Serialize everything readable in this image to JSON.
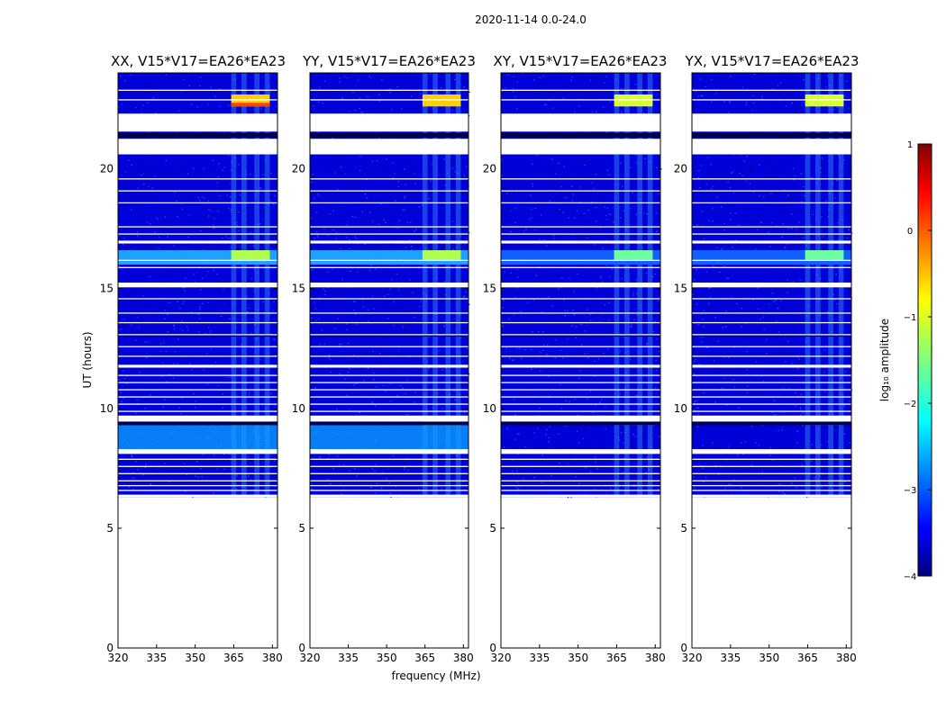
{
  "chart_data": {
    "type": "heatmap",
    "title": "2020-11-14 0.0-24.0",
    "xlabel": "frequency (MHz)",
    "ylabel": "UT (hours)",
    "xlim": [
      320,
      382
    ],
    "ylim": [
      0,
      24
    ],
    "xticks": [
      "320",
      "335",
      "350",
      "365",
      "380"
    ],
    "yticks": [
      "0",
      "5",
      "10",
      "15",
      "20"
    ],
    "panels": [
      {
        "title": "XX, V15*V17=EA26*EA23",
        "xlabel": ""
      },
      {
        "title": "YY, V15*V17=EA26*EA23",
        "xlabel": "frequency (MHz)"
      },
      {
        "title": "XY, V15*V17=EA26*EA23",
        "xlabel": ""
      },
      {
        "title": "YX, V15*V17=EA26*EA23",
        "xlabel": ""
      }
    ],
    "colorbar": {
      "label": "log₁₀ amplitude",
      "range": [
        -4,
        1
      ],
      "ticks": [
        "−4",
        "−3",
        "−2",
        "−1",
        "0",
        "1"
      ],
      "colormap": [
        "#00007f",
        "#0000ff",
        "#007fff",
        "#00ffff",
        "#7fff7f",
        "#ffff00",
        "#ff7f00",
        "#ff0000",
        "#7f0000"
      ]
    },
    "data_extent_hours": [
      6.3,
      24
    ],
    "rfi_band_mhz": [
      364,
      379
    ]
  },
  "colors": {
    "background": "#0000d8",
    "noise_light": "#1e4cff",
    "noise_dark": "#000070",
    "flagged": "#ffffff"
  }
}
